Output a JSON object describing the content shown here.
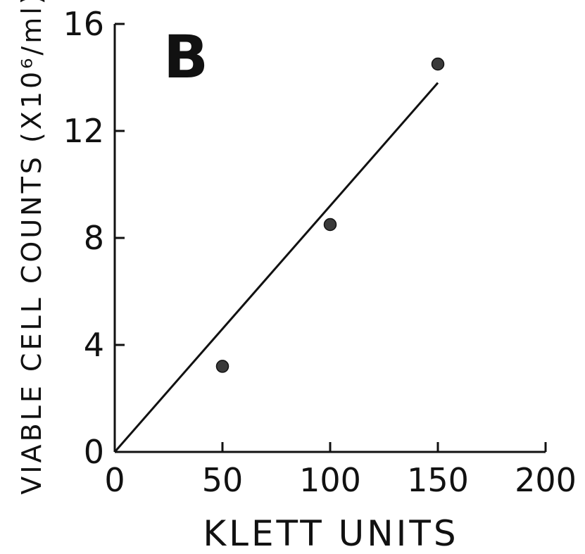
{
  "chart_data": {
    "type": "scatter",
    "panel_label": "B",
    "xlabel": "KLETT UNITS",
    "ylabel": "VIABLE CELL COUNTS (X10⁶/ml)",
    "xlim": [
      0,
      200
    ],
    "ylim": [
      0,
      16
    ],
    "x_ticks": [
      0,
      50,
      100,
      150,
      200
    ],
    "x_tick_labels": [
      "0",
      "50",
      "100",
      "150",
      "200"
    ],
    "y_ticks": [
      0,
      4,
      8,
      12,
      16
    ],
    "y_tick_labels": [
      "0",
      "4",
      "8",
      "12",
      "16"
    ],
    "grid": false,
    "series": [
      {
        "x": [
          50,
          100,
          150
        ],
        "y": [
          3.2,
          8.5,
          14.5
        ]
      }
    ],
    "fit_line": {
      "x": [
        0,
        150
      ],
      "y": [
        0,
        13.8
      ]
    }
  },
  "colors": {
    "ink": "#111111",
    "marker": "#3a3a3a"
  }
}
